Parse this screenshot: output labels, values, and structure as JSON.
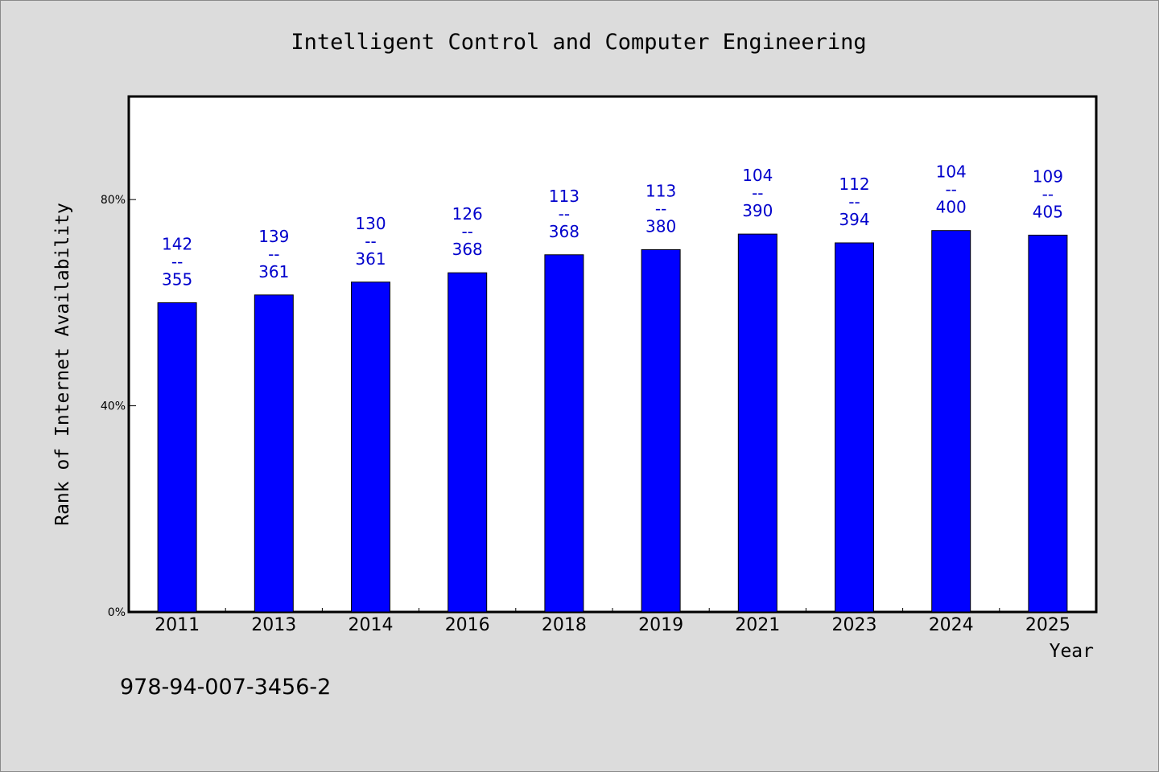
{
  "chart_data": {
    "type": "bar",
    "title": "Intelligent Control and Computer Engineering",
    "xlabel": "Year",
    "ylabel": "Rank of Internet Availability",
    "ylim": [
      0,
      100
    ],
    "yticks": [
      {
        "value": 0,
        "label": "0%"
      },
      {
        "value": 40,
        "label": "40%"
      },
      {
        "value": 80,
        "label": "80%"
      }
    ],
    "grid": false,
    "bar_color": "#0000ff",
    "label_color": "#0000cc",
    "categories": [
      "2011",
      "2013",
      "2014",
      "2016",
      "2018",
      "2019",
      "2021",
      "2023",
      "2024",
      "2025"
    ],
    "values": [
      60.0,
      61.5,
      64.0,
      65.8,
      69.3,
      70.3,
      73.3,
      71.6,
      74.0,
      73.1
    ],
    "data_labels": [
      {
        "rank": "142",
        "separator": "--",
        "total": "355"
      },
      {
        "rank": "139",
        "separator": "--",
        "total": "361"
      },
      {
        "rank": "130",
        "separator": "--",
        "total": "361"
      },
      {
        "rank": "126",
        "separator": "--",
        "total": "368"
      },
      {
        "rank": "113",
        "separator": "--",
        "total": "368"
      },
      {
        "rank": "113",
        "separator": "--",
        "total": "380"
      },
      {
        "rank": "104",
        "separator": "--",
        "total": "390"
      },
      {
        "rank": "112",
        "separator": "--",
        "total": "394"
      },
      {
        "rank": "104",
        "separator": "--",
        "total": "400"
      },
      {
        "rank": "109",
        "separator": "--",
        "total": "405"
      }
    ]
  },
  "footer": {
    "isbn": "978-94-007-3456-2"
  }
}
